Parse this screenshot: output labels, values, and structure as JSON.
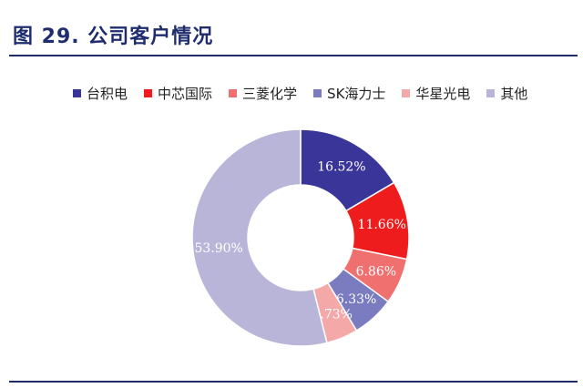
{
  "title": "图 29. 公司客户情况",
  "colors": {
    "title": "#1f2d6e",
    "rule": "#1f2d6e"
  },
  "chart_data": {
    "type": "pie",
    "donut": true,
    "legend_placement": "top",
    "categories": [
      "台积电",
      "中芯国际",
      "三菱化学",
      "SK海力士",
      "华星光电",
      "其他"
    ],
    "values": [
      16.52,
      11.66,
      6.86,
      6.33,
      4.73,
      53.9
    ],
    "labels": [
      "16.52%",
      "11.66%",
      "6.86%",
      "6.33%",
      "4.73%",
      "53.90%"
    ],
    "colors": [
      "#3a3699",
      "#ee1c1c",
      "#f07070",
      "#7b7bbf",
      "#f5a8a8",
      "#b8b5d9"
    ]
  }
}
